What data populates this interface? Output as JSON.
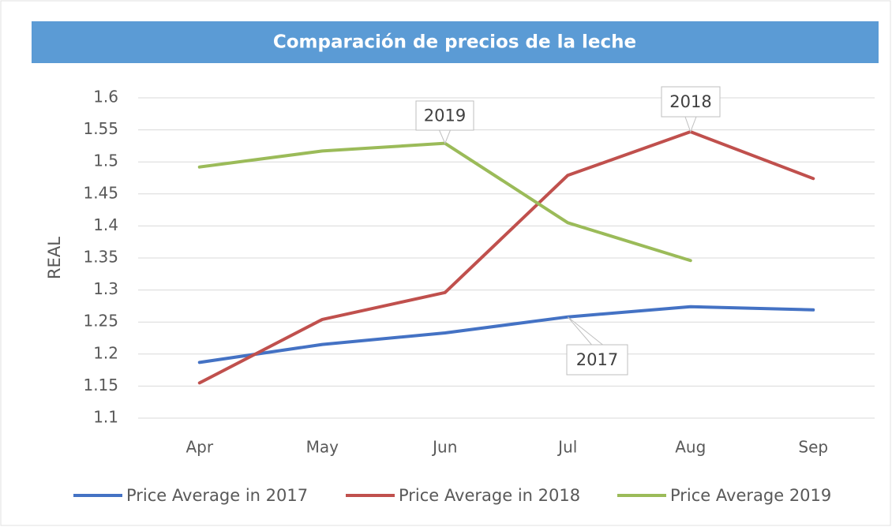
{
  "chart_data": {
    "type": "line",
    "title": "Comparación de precios de la leche",
    "y_label": "REAL",
    "categories": [
      "Apr",
      "May",
      "Jun",
      "Jul",
      "Aug",
      "Sep"
    ],
    "series": [
      {
        "name": "Price Average in 2017",
        "color": "#4472c4",
        "values": [
          1.187,
          1.215,
          1.233,
          1.258,
          1.274,
          1.269
        ]
      },
      {
        "name": "Price Average in 2018",
        "color": "#c0504d",
        "values": [
          1.155,
          1.254,
          1.296,
          1.479,
          1.547,
          1.474
        ]
      },
      {
        "name": "Price Average 2019",
        "color": "#9bbb59",
        "values": [
          1.492,
          1.517,
          1.529,
          1.405,
          1.346,
          null
        ]
      }
    ],
    "annotations": [
      "2019",
      "2018",
      "2017"
    ],
    "ylim": [
      1.1,
      1.6
    ],
    "yticks": [
      1.1,
      1.15,
      1.2,
      1.25,
      1.3,
      1.35,
      1.4,
      1.45,
      1.5,
      1.55,
      1.6
    ],
    "grid": true,
    "legend": "bottom",
    "title_background": "#5b9bd5"
  }
}
